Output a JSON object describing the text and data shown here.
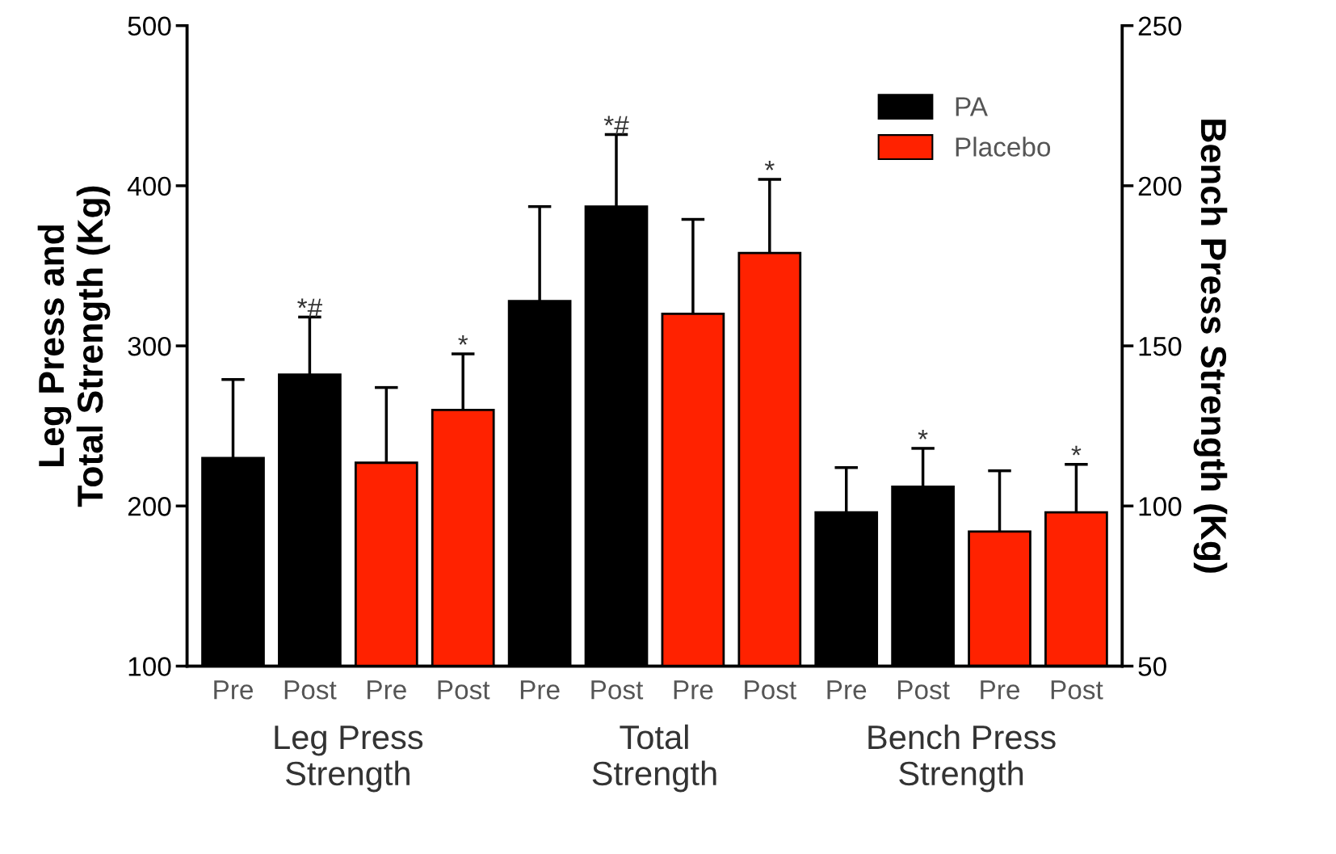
{
  "chart_data": {
    "type": "bar",
    "ylabel": "Leg Press and\nTotal Strength (Kg)",
    "y2label": "Bench Press Strength (Kg)",
    "categories": [
      "Pre",
      "Post",
      "Pre",
      "Post",
      "Pre",
      "Post",
      "Pre",
      "Post",
      "Pre",
      "Post",
      "Pre",
      "Post"
    ],
    "series": [
      {
        "name": "PA",
        "color": "#000000",
        "values": [
          230,
          282,
          null,
          null,
          328,
          387,
          null,
          null,
          null,
          null,
          null,
          null
        ],
        "errors": [
          [
            230,
            279
          ],
          [
            282,
            318
          ],
          null,
          null,
          [
            328,
            387
          ],
          [
            387,
            432
          ],
          null,
          null,
          null,
          null,
          null,
          null
        ],
        "value_labels": [
          null,
          "*#",
          null,
          null,
          null,
          "*#",
          null,
          null,
          null,
          null,
          null,
          null
        ]
      },
      {
        "name": "Placebo",
        "color": "#ff2200",
        "values": [
          null,
          null,
          227,
          260,
          null,
          null,
          320,
          358,
          null,
          null,
          null,
          null
        ],
        "errors": [
          null,
          null,
          [
            227,
            274
          ],
          [
            260,
            295
          ],
          null,
          null,
          [
            320,
            379
          ],
          [
            358,
            404
          ],
          null,
          null,
          null,
          null
        ],
        "value_labels": [
          null,
          null,
          null,
          "*",
          null,
          null,
          null,
          "*",
          null,
          null,
          null,
          null
        ]
      },
      {
        "color": "#000000",
        "axis": "y2",
        "values": [
          null,
          null,
          null,
          null,
          null,
          null,
          null,
          null,
          98,
          106,
          null,
          null
        ],
        "errors": [
          null,
          null,
          null,
          null,
          null,
          null,
          null,
          null,
          [
            98,
            112
          ],
          [
            106,
            118
          ],
          null,
          null
        ],
        "value_labels": [
          null,
          null,
          null,
          null,
          null,
          null,
          null,
          null,
          null,
          "*",
          null,
          null
        ]
      },
      {
        "color": "#ff2200",
        "axis": "y2",
        "values": [
          null,
          null,
          null,
          null,
          null,
          null,
          null,
          null,
          null,
          null,
          92,
          98
        ],
        "errors": [
          null,
          null,
          null,
          null,
          null,
          null,
          null,
          null,
          null,
          null,
          [
            92,
            111
          ],
          [
            98,
            113
          ]
        ],
        "value_labels": [
          null,
          null,
          null,
          null,
          null,
          null,
          null,
          null,
          null,
          null,
          null,
          "*"
        ]
      }
    ],
    "ylim": [
      100,
      500
    ],
    "yticks": [
      100,
      200,
      300,
      400,
      500
    ],
    "y2lim": [
      50,
      250
    ],
    "y2ticks": [
      50,
      100,
      150,
      200,
      250
    ],
    "annotations": [
      "Leg Press\nStrength",
      "Total\nStrength",
      "Bench Press\nStrength"
    ],
    "legend": "top right",
    "grid": false
  }
}
